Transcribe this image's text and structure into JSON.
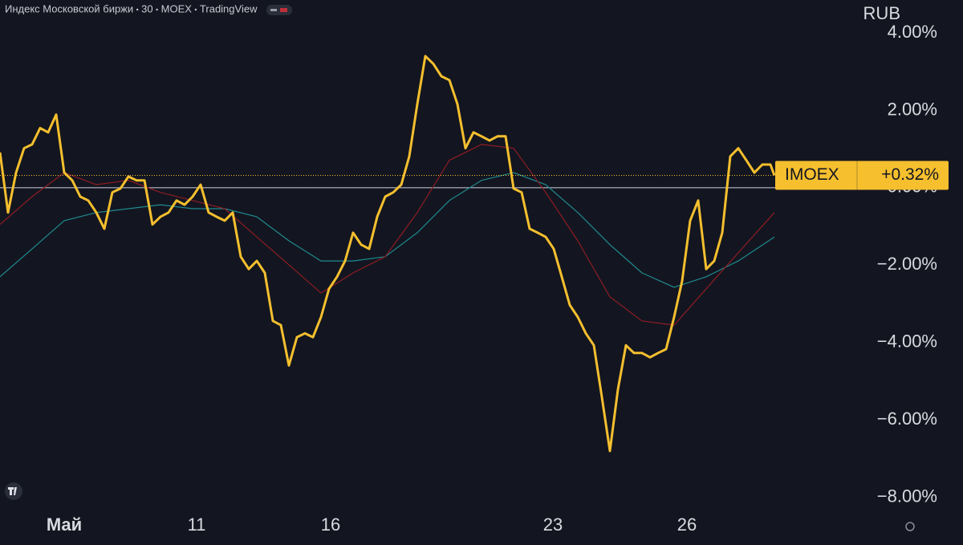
{
  "chart_data": {
    "type": "line",
    "header": [
      "Индекс Московской биржи",
      "30",
      "MOEX",
      "TradingView"
    ],
    "currency": "RUB",
    "xlim": [
      0,
      106.5
    ],
    "xticks": [
      {
        "value": 8,
        "label": "Май"
      },
      {
        "value": 24.5,
        "label": "11"
      },
      {
        "value": 41.2,
        "label": "16"
      },
      {
        "value": 68.9,
        "label": "23"
      },
      {
        "value": 85.6,
        "label": "26"
      }
    ],
    "ylim": [
      -8.42,
      4.85
    ],
    "yticks": [
      {
        "value": 4,
        "label": "4.00%"
      },
      {
        "value": 2,
        "label": "2.00%"
      },
      {
        "value": 0,
        "label": "0.00%"
      },
      {
        "value": -2,
        "label": "−2.00%"
      },
      {
        "value": -4,
        "label": "−4.00%"
      },
      {
        "value": -6,
        "label": "−6.00%"
      },
      {
        "value": -8,
        "label": "−8.00%"
      }
    ],
    "last_value_label": "+0.32%",
    "series": [
      {
        "name": "IMOEX",
        "color": "#f5bf2e",
        "x": [
          0,
          1,
          2,
          3,
          4,
          5,
          6,
          7,
          8,
          9,
          10,
          11,
          12,
          13,
          14,
          15,
          16,
          17,
          18,
          19,
          20,
          21,
          22,
          23,
          24,
          25,
          26,
          27,
          28,
          29,
          30,
          31,
          32,
          33,
          34,
          35,
          36,
          37,
          38,
          39,
          40,
          41,
          42,
          43,
          44,
          45,
          46,
          47,
          48,
          49,
          50,
          51,
          52,
          53,
          54,
          55,
          56,
          57,
          58,
          59,
          60,
          61,
          62,
          63,
          64,
          65,
          66,
          67,
          68,
          69,
          70,
          71,
          72,
          73,
          74,
          75,
          76,
          77,
          78,
          79,
          80,
          81,
          82,
          83,
          84,
          85,
          86,
          87,
          88,
          89,
          90,
          91,
          92,
          93,
          94,
          95,
          96,
          96.5
        ],
        "values": [
          0.91,
          -0.64,
          0.39,
          1.02,
          1.12,
          1.54,
          1.43,
          1.89,
          0.39,
          0.19,
          -0.23,
          -0.33,
          -0.64,
          -1.06,
          -0.12,
          -0.02,
          0.29,
          0.19,
          0.19,
          -0.95,
          -0.75,
          -0.64,
          -0.33,
          -0.44,
          -0.23,
          0.08,
          -0.64,
          -0.75,
          -0.85,
          -0.64,
          -1.78,
          -2.1,
          -1.89,
          -2.2,
          -3.44,
          -3.55,
          -4.59,
          -3.86,
          -3.76,
          -3.86,
          -3.34,
          -2.61,
          -2.3,
          -1.89,
          -1.16,
          -1.47,
          -1.58,
          -0.75,
          -0.23,
          -0.12,
          0.08,
          0.81,
          2.16,
          3.4,
          3.2,
          2.88,
          2.78,
          2.16,
          1.02,
          1.43,
          1.33,
          1.22,
          1.33,
          1.33,
          -0.02,
          -0.12,
          -1.06,
          -1.16,
          -1.27,
          -1.58,
          -2.3,
          -3.03,
          -3.34,
          -3.76,
          -4.07,
          -5.41,
          -6.8,
          -5.21,
          -4.07,
          -4.27,
          -4.27,
          -4.38,
          -4.27,
          -4.17,
          -3.34,
          -2.41,
          -0.85,
          -0.33,
          -2.1,
          -1.89,
          -1.16,
          0.81,
          1.02,
          0.71,
          0.39,
          0.6,
          0.6,
          0.32
        ]
      },
      {
        "color": "#8e1c24",
        "x": [
          0,
          4,
          8,
          12,
          16,
          20,
          24,
          28,
          32,
          36,
          40,
          44,
          48,
          52,
          56,
          60,
          64,
          68,
          72,
          76,
          80,
          84,
          88,
          92,
          96.5
        ],
        "values": [
          -0.95,
          -0.23,
          0.39,
          0.08,
          0.19,
          -0.12,
          -0.33,
          -0.54,
          -1.27,
          -1.99,
          -2.72,
          -2.2,
          -1.78,
          -0.64,
          0.71,
          1.12,
          1.02,
          -0.12,
          -1.37,
          -2.82,
          -3.44,
          -3.55,
          -2.61,
          -1.68,
          -0.64
        ]
      },
      {
        "color": "#1f8a8f",
        "x": [
          0,
          4,
          8,
          12,
          16,
          20,
          24,
          28,
          32,
          36,
          40,
          44,
          48,
          52,
          56,
          60,
          64,
          68,
          72,
          76,
          80,
          84,
          88,
          92,
          96.5
        ],
        "values": [
          -2.3,
          -1.58,
          -0.85,
          -0.64,
          -0.54,
          -0.44,
          -0.54,
          -0.54,
          -0.75,
          -1.37,
          -1.89,
          -1.89,
          -1.78,
          -1.16,
          -0.33,
          0.19,
          0.39,
          0.08,
          -0.64,
          -1.47,
          -2.2,
          -2.57,
          -2.3,
          -1.89,
          -1.27
        ]
      }
    ]
  }
}
